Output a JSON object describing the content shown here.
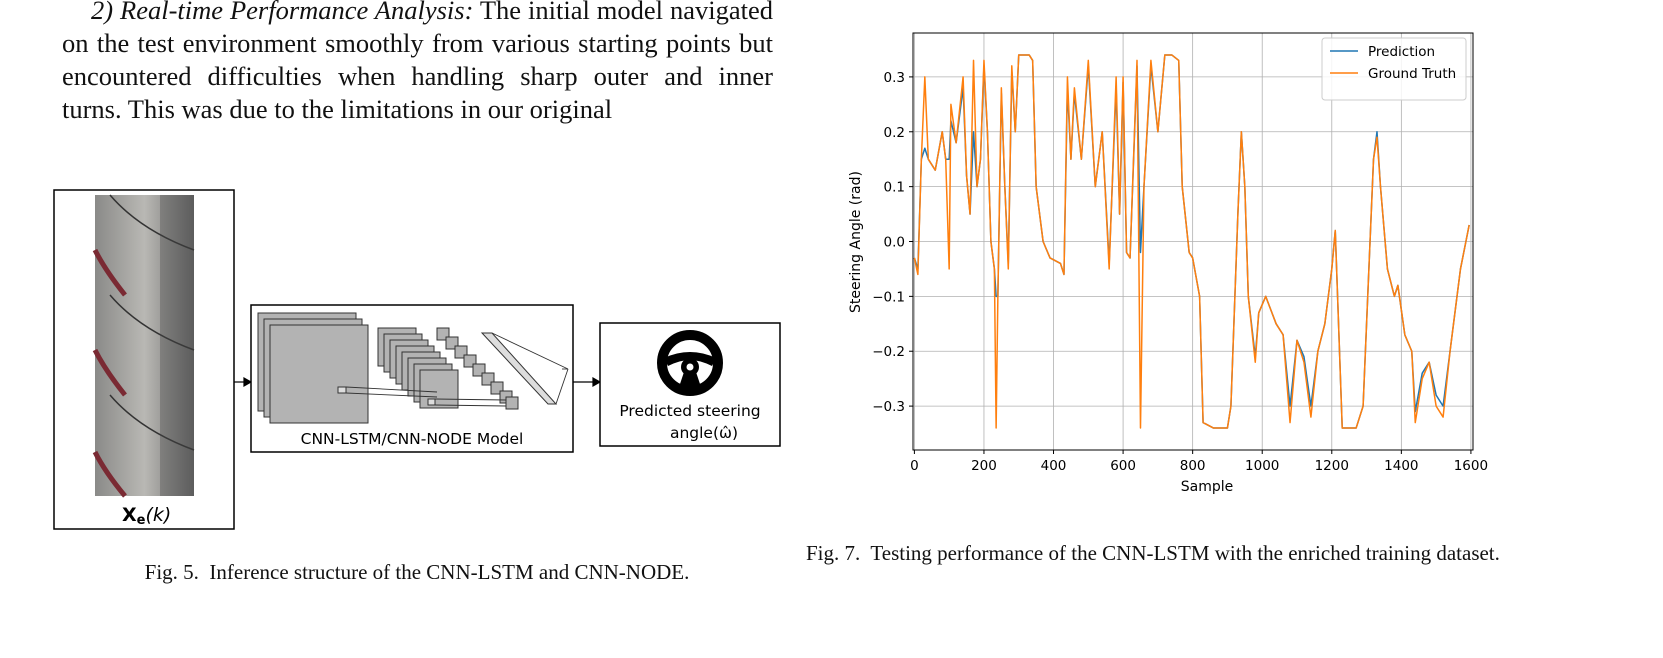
{
  "text": {
    "heading": "2) Real-time Performance Analysis:",
    "body": "The initial model navigated on the test environment smoothly from various starting points but encountered difficulties when handling sharp outer and inner turns. This was due to the limitations in our original"
  },
  "figure5": {
    "input_label": {
      "symbol": "X",
      "subscript": "e",
      "argument": "(k)"
    },
    "model_label": "CNN-LSTM/CNN-NODE Model",
    "output_label_1": "Predicted steering",
    "output_label_2": "angle(ω̂)",
    "caption": "Fig. 5.  Inference structure of the CNN-LSTM and CNN-NODE."
  },
  "figure7_caption": "Fig. 7.  Testing performance of the CNN-LSTM with the enriched training dataset.",
  "chart_data": {
    "type": "line",
    "xlabel": "Sample",
    "ylabel": "Steering Angle (rad)",
    "x": [
      0,
      10,
      20,
      30,
      40,
      60,
      80,
      90,
      100,
      105,
      120,
      140,
      150,
      160,
      170,
      180,
      190,
      200,
      210,
      220,
      230,
      235,
      240,
      250,
      260,
      270,
      280,
      290,
      300,
      330,
      340,
      350,
      370,
      390,
      420,
      430,
      440,
      450,
      460,
      480,
      500,
      520,
      540,
      560,
      580,
      590,
      600,
      610,
      620,
      640,
      650,
      660,
      680,
      700,
      720,
      740,
      760,
      770,
      790,
      800,
      820,
      830,
      860,
      900,
      910,
      930,
      940,
      950,
      960,
      980,
      990,
      1010,
      1040,
      1060,
      1080,
      1100,
      1120,
      1140,
      1160,
      1180,
      1200,
      1210,
      1230,
      1270,
      1290,
      1310,
      1320,
      1330,
      1340,
      1360,
      1380,
      1390,
      1410,
      1430,
      1440,
      1460,
      1480,
      1500,
      1520,
      1540,
      1570,
      1595
    ],
    "series": [
      {
        "name": "Prediction",
        "color": "#1f77b4",
        "values": [
          -0.03,
          -0.05,
          0.15,
          0.17,
          0.15,
          0.13,
          0.2,
          0.15,
          0.15,
          0.22,
          0.18,
          0.28,
          0.12,
          0.05,
          0.2,
          0.1,
          0.15,
          0.32,
          0.2,
          0.0,
          -0.05,
          -0.1,
          -0.1,
          0.27,
          0.1,
          -0.04,
          0.31,
          0.2,
          0.34,
          0.34,
          0.33,
          0.1,
          0.0,
          -0.03,
          -0.04,
          -0.06,
          0.28,
          0.15,
          0.27,
          0.15,
          0.32,
          0.1,
          0.2,
          -0.04,
          0.28,
          0.05,
          0.29,
          -0.02,
          -0.03,
          0.32,
          -0.02,
          0.1,
          0.32,
          0.2,
          0.34,
          0.34,
          0.33,
          0.1,
          -0.02,
          -0.03,
          -0.1,
          -0.33,
          -0.34,
          -0.34,
          -0.3,
          0.05,
          0.2,
          0.1,
          -0.1,
          -0.21,
          -0.13,
          -0.1,
          -0.15,
          -0.17,
          -0.3,
          -0.18,
          -0.21,
          -0.3,
          -0.2,
          -0.15,
          -0.05,
          0.02,
          -0.34,
          -0.34,
          -0.3,
          0.0,
          0.15,
          0.2,
          0.1,
          -0.05,
          -0.1,
          -0.08,
          -0.17,
          -0.2,
          -0.31,
          -0.24,
          -0.22,
          -0.28,
          -0.3,
          -0.2,
          -0.05,
          0.03
        ]
      },
      {
        "name": "Ground Truth",
        "color": "#ff7f0e",
        "values": [
          -0.03,
          -0.06,
          0.15,
          0.3,
          0.15,
          0.13,
          0.2,
          0.15,
          -0.05,
          0.25,
          0.18,
          0.3,
          0.12,
          0.05,
          0.33,
          0.1,
          0.15,
          0.33,
          0.2,
          0.0,
          -0.05,
          -0.34,
          -0.1,
          0.28,
          0.1,
          -0.05,
          0.32,
          0.2,
          0.34,
          0.34,
          0.33,
          0.1,
          0.0,
          -0.03,
          -0.04,
          -0.06,
          0.3,
          0.15,
          0.28,
          0.15,
          0.33,
          0.1,
          0.2,
          -0.05,
          0.3,
          0.05,
          0.3,
          -0.02,
          -0.03,
          0.33,
          -0.34,
          0.1,
          0.33,
          0.2,
          0.34,
          0.34,
          0.33,
          0.1,
          -0.02,
          -0.03,
          -0.1,
          -0.33,
          -0.34,
          -0.34,
          -0.3,
          0.05,
          0.2,
          0.1,
          -0.1,
          -0.22,
          -0.13,
          -0.1,
          -0.15,
          -0.17,
          -0.33,
          -0.18,
          -0.22,
          -0.32,
          -0.2,
          -0.15,
          -0.05,
          0.02,
          -0.34,
          -0.34,
          -0.3,
          0.0,
          0.15,
          0.19,
          0.1,
          -0.05,
          -0.1,
          -0.08,
          -0.17,
          -0.2,
          -0.33,
          -0.25,
          -0.22,
          -0.3,
          -0.32,
          -0.2,
          -0.05,
          0.03
        ]
      }
    ],
    "xlim": [
      -4,
      1606
    ],
    "ylim": [
      -0.38,
      0.38
    ],
    "xticks": [
      0,
      200,
      400,
      600,
      800,
      1000,
      1200,
      1400,
      1600
    ],
    "yticks": [
      {
        "value": -0.3,
        "label": "−0.3"
      },
      {
        "value": -0.2,
        "label": "−0.2"
      },
      {
        "value": -0.1,
        "label": "−0.1"
      },
      {
        "value": 0,
        "label": "0.0"
      },
      0.1,
      0.2,
      0.3
    ],
    "grid": true,
    "legend": "upper right"
  }
}
